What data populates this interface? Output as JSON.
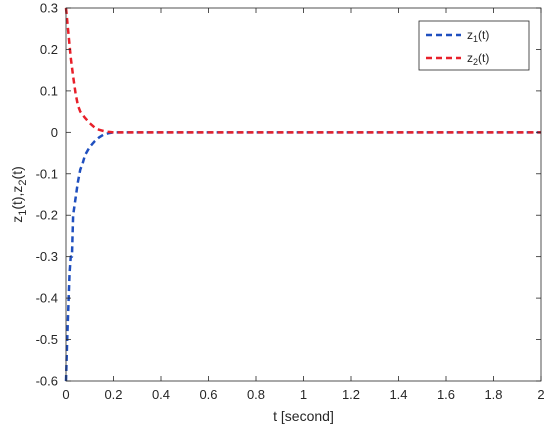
{
  "chart_data": {
    "type": "line",
    "xlabel": "t [second]",
    "ylabel_parts": {
      "z1_base": "z",
      "z1_sub": "1",
      "z1_rest": "(t),",
      "z2_base": "z",
      "z2_sub": "2",
      "z2_rest": "(t)"
    },
    "xlim": [
      0,
      2
    ],
    "ylim": [
      -0.6,
      0.3
    ],
    "xticks": [
      "0",
      "0.2",
      "0.4",
      "0.6",
      "0.8",
      "1",
      "1.2",
      "1.4",
      "1.6",
      "1.8",
      "2"
    ],
    "yticks": [
      "-0.6",
      "-0.5",
      "-0.4",
      "-0.3",
      "-0.2",
      "-0.1",
      "0",
      "0.1",
      "0.2",
      "0.3"
    ],
    "grid": false,
    "legend_position": "top-right",
    "series": [
      {
        "name_base": "z",
        "name_sub": "1",
        "name_rest": "(t)",
        "color": "#1f4fbf",
        "style": "dashed",
        "x": [
          0,
          0.005,
          0.01,
          0.015,
          0.02,
          0.025,
          0.03,
          0.04,
          0.05,
          0.06,
          0.07,
          0.08,
          0.1,
          0.12,
          0.14,
          0.16,
          0.18,
          0.2,
          0.25,
          0.3,
          0.5,
          1.0,
          1.5,
          2.0
        ],
        "y": [
          -0.6,
          -0.5,
          -0.42,
          -0.34,
          -0.3,
          -0.3,
          -0.2,
          -0.16,
          -0.12,
          -0.09,
          -0.075,
          -0.055,
          -0.035,
          -0.022,
          -0.012,
          -0.005,
          -0.002,
          0,
          0,
          0,
          0,
          0,
          0,
          0
        ]
      },
      {
        "name_base": "z",
        "name_sub": "2",
        "name_rest": "(t)",
        "color": "#e8202a",
        "style": "dashed",
        "x": [
          0,
          0.005,
          0.01,
          0.015,
          0.02,
          0.03,
          0.04,
          0.05,
          0.06,
          0.08,
          0.1,
          0.12,
          0.14,
          0.16,
          0.18,
          0.2,
          0.25,
          0.3,
          0.5,
          1.0,
          1.5,
          2.0
        ],
        "y": [
          0.3,
          0.27,
          0.24,
          0.21,
          0.18,
          0.135,
          0.095,
          0.065,
          0.05,
          0.035,
          0.022,
          0.012,
          0.006,
          0.003,
          0.001,
          0,
          0,
          0,
          0,
          0,
          0,
          0
        ]
      }
    ]
  }
}
